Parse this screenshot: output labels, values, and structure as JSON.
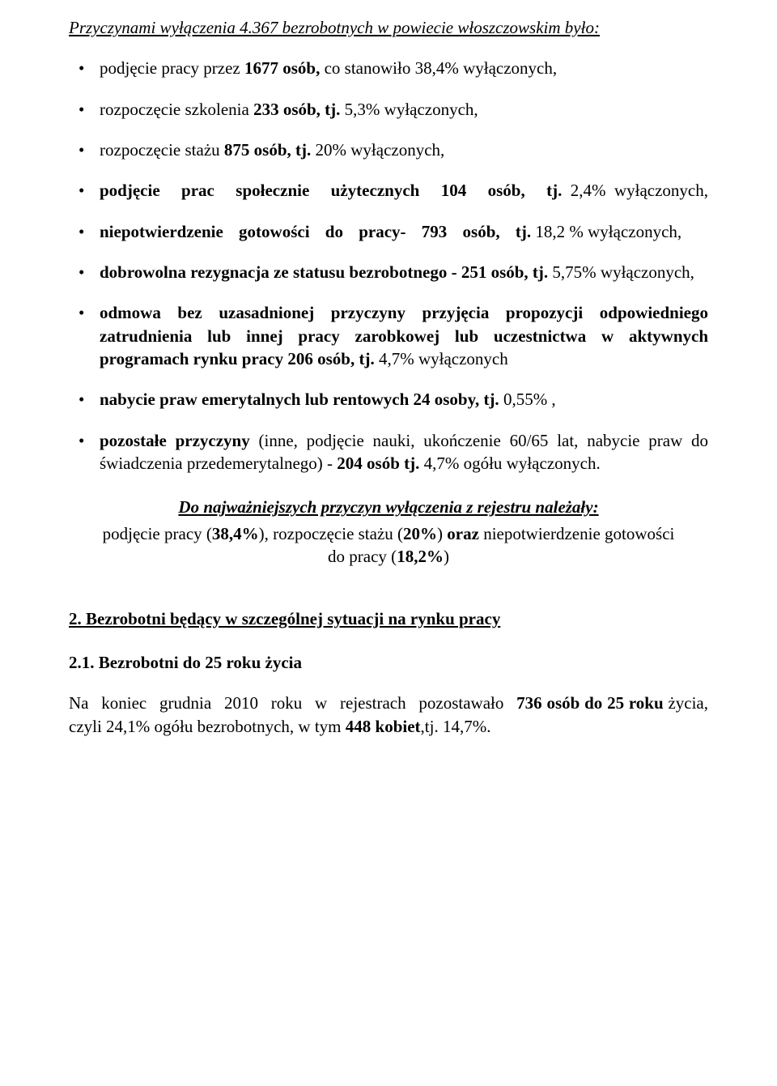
{
  "title": {
    "prefix": "Przyczynami wyłączenia 4.367 bezrobotnych w powiecie włoszczowskim było:"
  },
  "items": [
    {
      "pre": "podjęcie pracy przez ",
      "bold1": "1677 osób,",
      "mid": " co stanowiło 38,4% wyłączonych,",
      "tail": ""
    },
    {
      "pre": "rozpoczęcie szkolenia ",
      "bold1": "233 osób, tj.",
      "mid": " 5,3% wyłączonych,",
      "tail": ""
    },
    {
      "pre": "rozpoczęcie stażu ",
      "bold1": "875 osób, tj.",
      "mid": " 20% wyłączonych,",
      "tail": ""
    },
    {
      "bold1": "podjęcie prac społecznie użytecznych 104 osób, tj.",
      "mid": " 2,4% wyłączonych,",
      "pre": "",
      "tail": ""
    },
    {
      "bold1": "niepotwierdzenie gotowości do pracy- 793 osób, tj.",
      "mid": " 18,2 % wyłączonych,",
      "pre": "",
      "tail": ""
    },
    {
      "bold1": "dobrowolna rezygnacja ze statusu bezrobotnego - 251 osób, tj.",
      "mid": " 5,75% wyłączonych,",
      "pre": "",
      "tail": ""
    },
    {
      "bold1": "odmowa bez uzasadnionej przyczyny przyjęcia propozycji odpowiedniego zatrudnienia lub innej pracy zarobkowej lub uczestnictwa w aktywnych programach rynku pracy 206 osób, tj.",
      "mid": " 4,7% wyłączonych",
      "pre": "",
      "tail": ""
    },
    {
      "bold1": "nabycie praw emerytalnych lub rentowych 24 osoby, tj.",
      "mid": " 0,55% ,",
      "pre": "",
      "tail": ""
    },
    {
      "bold1": "pozostałe przyczyny",
      "mid": " (inne, podjęcie nauki, ukończenie 60/65 lat, nabycie praw do świadczenia przedemerytalnego) - ",
      "bold2": "204 osób tj.",
      "tail": " 4,7% ogółu wyłączonych.",
      "pre": ""
    }
  ],
  "summary": {
    "heading": "Do najważniejszych przyczyn wyłączenia z rejestru należały:",
    "body_pre": "podjęcie pracy (",
    "b1": "38,4%",
    "body_mid1": "), rozpoczęcie stażu (",
    "b2": "20%",
    "body_mid2": ") ",
    "b3": "oraz ",
    "body_mid3": "niepotwierdzenie gotowości do pracy (",
    "b4": "18,2%",
    "body_tail": ")"
  },
  "section2": {
    "h2": "2. Bezrobotni będący w szczególnej sytuacji na rynku pracy",
    "h3": "2.1. Bezrobotni do 25 roku życia",
    "para_pre": "Na koniec grudnia 2010 roku w rejestrach pozostawało  ",
    "para_b1": "736 osób do 25 roku ",
    "para_mid1": " życia, czyli 24,1%  ogółu bezrobotnych, w tym ",
    "para_b2": "448 kobiet",
    "para_tail": ",tj. 14,7%."
  }
}
